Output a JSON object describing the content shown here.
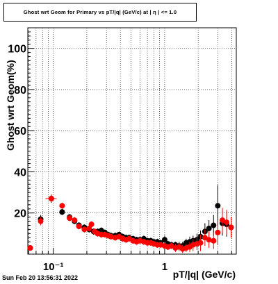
{
  "chart_data": {
    "type": "scatter",
    "title": "Ghost wrt Geom for Primary vs pT/|q| (GeV/c) at | η | <= 1.0",
    "xlabel": "pT/|q| (GeV/c)",
    "ylabel": "Ghost wrt Geom(%)",
    "x_scale": "log",
    "xlim": [
      0.059,
      4.4
    ],
    "ylim": [
      0,
      110
    ],
    "x_tick_labels": [
      "10⁻¹",
      "1"
    ],
    "y_ticks": [
      20,
      40,
      60,
      80,
      100
    ],
    "grid": true,
    "series": [
      {
        "color": "#000000",
        "points": [
          [
            0.062,
            3
          ],
          [
            0.077,
            17
          ],
          [
            0.096,
            27
          ],
          [
            0.12,
            20.5
          ],
          [
            0.14,
            18
          ],
          [
            0.155,
            16
          ],
          [
            0.17,
            14
          ],
          [
            0.19,
            13
          ],
          [
            0.21,
            12
          ],
          [
            0.23,
            11
          ],
          [
            0.25,
            11
          ],
          [
            0.27,
            11.5
          ],
          [
            0.29,
            10.5
          ],
          [
            0.31,
            9.5
          ],
          [
            0.33,
            9
          ],
          [
            0.36,
            9
          ],
          [
            0.39,
            9.5
          ],
          [
            0.42,
            8.5
          ],
          [
            0.45,
            8
          ],
          [
            0.48,
            8
          ],
          [
            0.52,
            7.5
          ],
          [
            0.56,
            7
          ],
          [
            0.6,
            7
          ],
          [
            0.65,
            7.5
          ],
          [
            0.7,
            6.5
          ],
          [
            0.75,
            6.5
          ],
          [
            0.8,
            6
          ],
          [
            0.86,
            6
          ],
          [
            0.92,
            5.5
          ],
          [
            1.0,
            7
          ],
          [
            1.07,
            5
          ],
          [
            1.15,
            4.5
          ],
          [
            1.25,
            4.5
          ],
          [
            1.35,
            4
          ],
          [
            1.45,
            4
          ],
          [
            1.56,
            5.5
          ],
          [
            1.68,
            6
          ],
          [
            1.8,
            6.5
          ],
          [
            1.95,
            7
          ],
          [
            2.1,
            8.5
          ],
          [
            2.3,
            11
          ],
          [
            2.5,
            12.5
          ],
          [
            2.75,
            14
          ],
          [
            3.0,
            23.5
          ],
          [
            3.3,
            15
          ],
          [
            3.6,
            14.5
          ],
          [
            3.95,
            13
          ]
        ],
        "yerr": [
          1,
          2,
          2,
          1.5,
          1.5,
          1.5,
          1.5,
          1.5,
          1.5,
          1.5,
          1.5,
          1.5,
          1.5,
          1.5,
          1.5,
          1.5,
          1.5,
          1.5,
          1.5,
          1.5,
          1.5,
          1.5,
          1.5,
          1.5,
          1.5,
          1.5,
          1.5,
          1.5,
          1.5,
          2,
          1.5,
          1.5,
          1.5,
          2,
          2,
          2,
          2.5,
          2.5,
          3,
          3,
          4,
          4,
          5,
          10,
          6,
          6,
          5
        ]
      },
      {
        "color": "#ff0000",
        "points": [
          [
            0.062,
            3
          ],
          [
            0.077,
            16
          ],
          [
            0.096,
            27
          ],
          [
            0.12,
            23.5
          ],
          [
            0.14,
            17.5
          ],
          [
            0.155,
            16.5
          ],
          [
            0.17,
            13.5
          ],
          [
            0.19,
            12
          ],
          [
            0.21,
            12.5
          ],
          [
            0.22,
            14.5
          ],
          [
            0.235,
            11
          ],
          [
            0.25,
            10
          ],
          [
            0.27,
            9.5
          ],
          [
            0.29,
            9.5
          ],
          [
            0.31,
            9
          ],
          [
            0.33,
            8.5
          ],
          [
            0.36,
            8
          ],
          [
            0.39,
            8.5
          ],
          [
            0.42,
            7.5
          ],
          [
            0.45,
            7
          ],
          [
            0.48,
            7.5
          ],
          [
            0.52,
            6.5
          ],
          [
            0.56,
            6
          ],
          [
            0.6,
            6.5
          ],
          [
            0.65,
            6
          ],
          [
            0.7,
            5.5
          ],
          [
            0.75,
            5.5
          ],
          [
            0.8,
            5
          ],
          [
            0.86,
            4.5
          ],
          [
            0.92,
            4.5
          ],
          [
            1.0,
            4
          ],
          [
            1.07,
            3.5
          ],
          [
            1.15,
            4
          ],
          [
            1.25,
            3
          ],
          [
            1.35,
            3.5
          ],
          [
            1.45,
            2.5
          ],
          [
            1.56,
            3
          ],
          [
            1.68,
            3.5
          ],
          [
            1.8,
            4.5
          ],
          [
            1.95,
            5
          ],
          [
            2.1,
            5.5
          ],
          [
            2.3,
            8
          ],
          [
            2.5,
            7
          ],
          [
            2.75,
            6.5
          ],
          [
            3.0,
            10.5
          ],
          [
            3.3,
            16.5
          ],
          [
            3.6,
            15.5
          ],
          [
            3.95,
            13
          ]
        ],
        "yerr": [
          1,
          2,
          2,
          1.5,
          1.5,
          1.5,
          1.5,
          1.5,
          1.5,
          1.5,
          1.5,
          1.5,
          1.5,
          1.5,
          1.5,
          1.5,
          1.5,
          1.5,
          1.5,
          1.5,
          1.5,
          1.5,
          1.5,
          1.5,
          1.5,
          1.5,
          1.5,
          1.5,
          1.5,
          1.5,
          1.5,
          1.5,
          1.5,
          2,
          2,
          2,
          2,
          2.5,
          3,
          3,
          4,
          4,
          4,
          4,
          6,
          6,
          6,
          5
        ]
      }
    ]
  },
  "timestamp": "Sun Feb 20 13:56:31 2022"
}
